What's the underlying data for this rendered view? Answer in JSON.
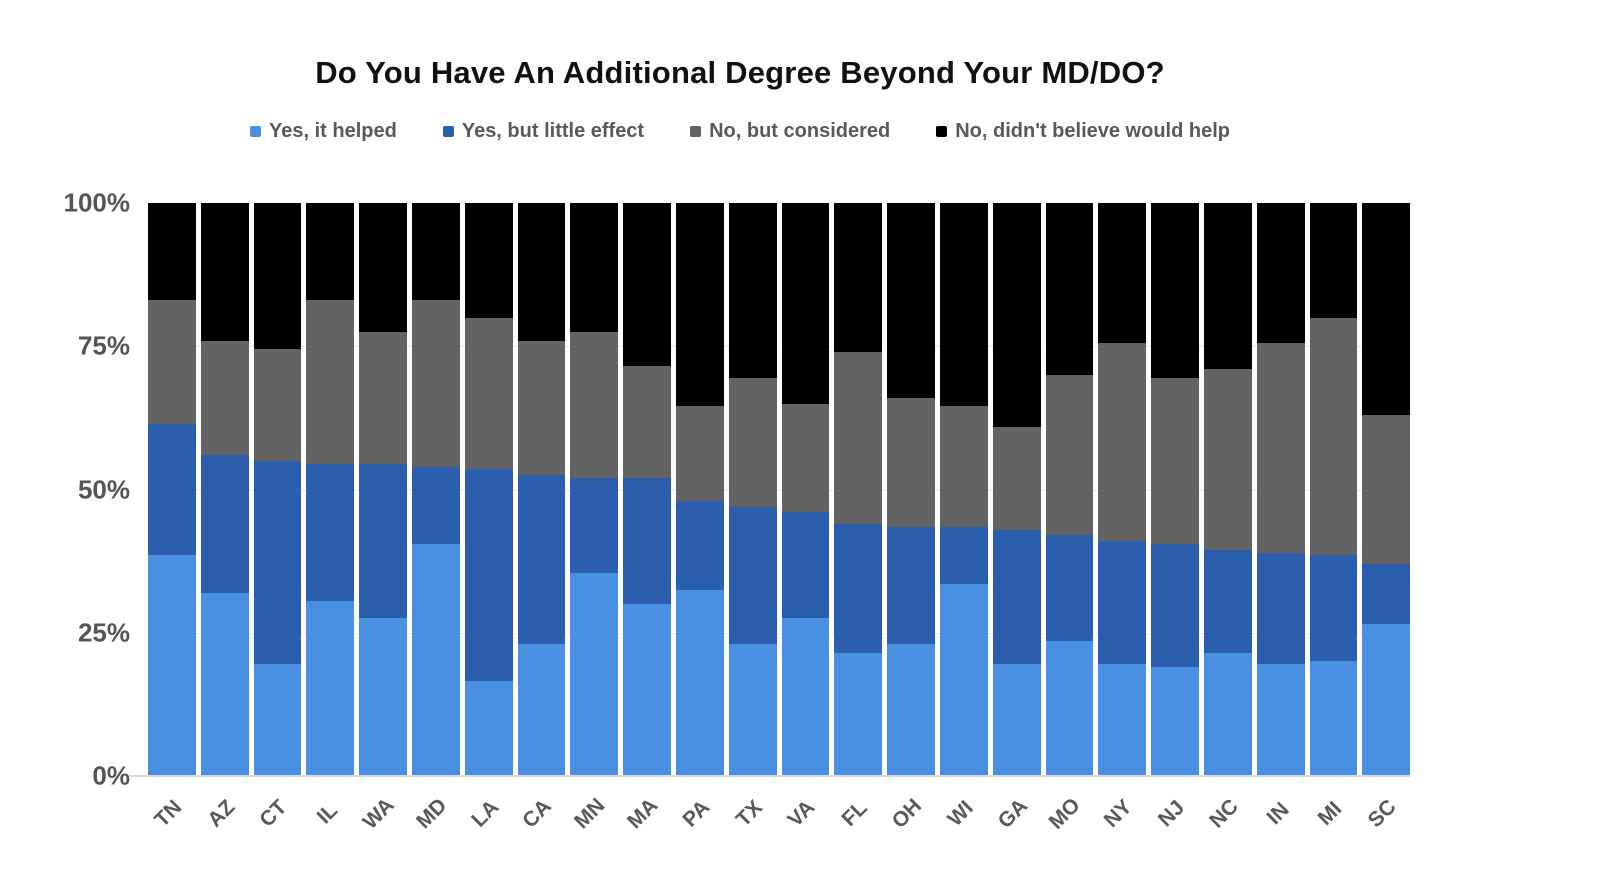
{
  "title": "Do You Have An Additional Degree Beyond Your MD/DO?",
  "y_axis": {
    "labels": [
      "100%",
      "75%",
      "50%",
      "25%",
      "0%"
    ],
    "positions": [
      100,
      75,
      50,
      25,
      0
    ]
  },
  "gridline_positions": [
    75,
    50,
    25
  ],
  "colors": {
    "yes_helped": "#4a90e2",
    "yes_little_effect": "#2b5fad",
    "no_considered": "#636363",
    "no_would_not_help": "#000000",
    "axis_text": "#595959",
    "gridline": "#e7e7e7",
    "background": "#ffffff"
  },
  "chart_data": {
    "type": "bar",
    "subtype": "stacked-100-percent",
    "title": "Do You Have An Additional Degree Beyond Your MD/DO?",
    "xlabel": "",
    "ylabel": "",
    "ylim": [
      0,
      100
    ],
    "grid": true,
    "legend_position": "top",
    "categories": [
      "TN",
      "AZ",
      "CT",
      "IL",
      "WA",
      "MD",
      "LA",
      "CA",
      "MN",
      "MA",
      "PA",
      "TX",
      "VA",
      "FL",
      "OH",
      "WI",
      "GA",
      "MO",
      "NY",
      "NJ",
      "NC",
      "IN",
      "MI",
      "SC"
    ],
    "series": [
      {
        "name": "Yes, it helped",
        "color": "#4a90e2",
        "values": [
          38.5,
          32,
          19.5,
          30.5,
          27.5,
          40.5,
          16.5,
          23,
          35.5,
          30,
          32.5,
          23,
          27.5,
          21.5,
          23,
          33.5,
          19.5,
          23.5,
          19.5,
          19,
          21.5,
          19.5,
          20,
          26.5
        ]
      },
      {
        "name": "Yes, but little effect",
        "color": "#2b5fad",
        "values": [
          23,
          24,
          35.5,
          24,
          27,
          13.5,
          37,
          29.5,
          16.5,
          22,
          15.5,
          24,
          18.5,
          22.5,
          20.5,
          10,
          23.5,
          18.5,
          21.5,
          21.5,
          18,
          19.5,
          18.5,
          10.5
        ]
      },
      {
        "name": "No, but considered",
        "color": "#636363",
        "values": [
          21.5,
          20,
          19.5,
          28.5,
          23,
          29,
          26.5,
          23.5,
          25.5,
          19.5,
          16.5,
          22.5,
          19,
          30,
          22.5,
          21,
          18,
          28,
          34.5,
          29,
          31.5,
          36.5,
          41.5,
          26
        ]
      },
      {
        "name": "No, didn't believe would help",
        "color": "#000000",
        "values": [
          17,
          24,
          25.5,
          17,
          22.5,
          17,
          20,
          24,
          22.5,
          28.5,
          35.5,
          30.5,
          35,
          26,
          34,
          35.5,
          39,
          30,
          24.5,
          30.5,
          29,
          24.5,
          20,
          37
        ]
      }
    ]
  }
}
